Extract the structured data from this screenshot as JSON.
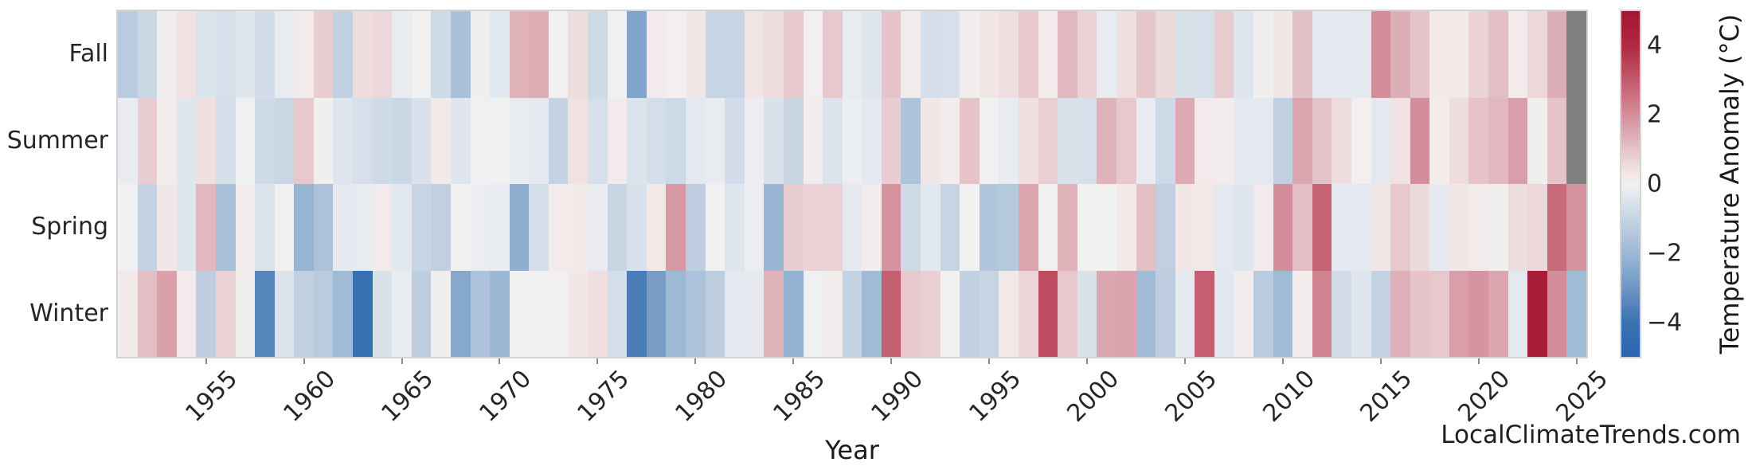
{
  "page": {
    "background": "#ffffff"
  },
  "footer": {
    "watermark": "LocalClimateTrends.com"
  },
  "chart_data": {
    "type": "heatmap",
    "title": "",
    "xlabel": "Year",
    "ylabel": "",
    "legend_position": "right-colorbar",
    "grid": false,
    "colorbar_label": "Temperature Anomaly (°C)",
    "colorbar_ticks": [
      {
        "value": 4,
        "label": "4"
      },
      {
        "value": 2,
        "label": "2"
      },
      {
        "value": 0,
        "label": "0"
      },
      {
        "value": -2,
        "label": "−2"
      },
      {
        "value": -4,
        "label": "−4"
      }
    ],
    "vmin": -5,
    "vmax": 5,
    "nan_color": "#808080",
    "colormap_name": "diverging-blue-white-red",
    "colormap_stops": [
      [
        -5,
        "#2a65ad"
      ],
      [
        -4,
        "#3a72b2"
      ],
      [
        -3,
        "#6f97c4"
      ],
      [
        -2,
        "#9cb8d5"
      ],
      [
        -1,
        "#c6d4e3"
      ],
      [
        -0.3,
        "#e4e9f0"
      ],
      [
        0,
        "#f1f1f2"
      ],
      [
        0.3,
        "#f2e7e7"
      ],
      [
        1,
        "#e5c3c9"
      ],
      [
        2,
        "#d48e9b"
      ],
      [
        3,
        "#c25a6d"
      ],
      [
        4,
        "#b02a40"
      ],
      [
        5,
        "#a31530"
      ]
    ],
    "categories_y": [
      "Fall",
      "Summer",
      "Spring",
      "Winter"
    ],
    "x_start_year": 1951,
    "x_end_year": 2025,
    "x_tick_labels": [
      "1955",
      "1960",
      "1965",
      "1970",
      "1975",
      "1980",
      "1985",
      "1990",
      "1995",
      "2000",
      "2005",
      "2010",
      "2015",
      "2020",
      "2025"
    ],
    "series": [
      {
        "name": "Fall",
        "values": [
          -1.3,
          -0.9,
          0.1,
          0.4,
          -0.5,
          -0.6,
          -0.4,
          -0.7,
          -0.2,
          0.2,
          0.8,
          -1.1,
          0.5,
          0.6,
          -0.2,
          0,
          -0.8,
          -1.7,
          0.1,
          -0.35,
          1.3,
          1.4,
          0,
          0.5,
          -0.8,
          0,
          -2.6,
          0.2,
          0.05,
          0.3,
          -1,
          -1,
          0.35,
          0.5,
          0.9,
          0.05,
          0.9,
          -0.2,
          -0.4,
          1,
          0.15,
          -0.65,
          -0.6,
          0.15,
          0.3,
          0.45,
          0.9,
          0.2,
          1.2,
          0.7,
          -0.2,
          0.45,
          0.95,
          0.55,
          -0.55,
          -0.6,
          0.85,
          -0.45,
          0.1,
          0.3,
          1.05,
          -0.25,
          -0.25,
          -0.3,
          2,
          1.4,
          1,
          0.25,
          0.25,
          0.7,
          1.1,
          0.2,
          0.6,
          1.4,
          null
        ]
      },
      {
        "name": "Summer",
        "values": [
          -0.2,
          0.8,
          0.15,
          -0.4,
          0.45,
          -0.65,
          -0.05,
          -0.8,
          -0.9,
          0.9,
          0.1,
          -0.45,
          -0.6,
          -0.8,
          -0.9,
          -0.55,
          0.25,
          -0.4,
          -0.05,
          0,
          -0.2,
          -0.25,
          -1.05,
          0.4,
          -0.6,
          0.2,
          -0.5,
          -0.65,
          -0.85,
          -0.3,
          -0.2,
          -0.7,
          -0.1,
          -0.55,
          -0.95,
          0.15,
          -0.5,
          -0.1,
          -0.25,
          0.8,
          -1.6,
          0.3,
          0.15,
          1,
          0,
          -0.2,
          0.45,
          0.75,
          -0.55,
          -0.6,
          1.3,
          0.9,
          -0.2,
          -0.85,
          1.5,
          0.2,
          0.15,
          -0.25,
          -0.3,
          -1.15,
          1.55,
          1,
          0.5,
          0.05,
          -0.3,
          0.4,
          2,
          0.15,
          0.5,
          1,
          1.2,
          1.7,
          0.1,
          1,
          null
        ]
      },
      {
        "name": "Spring",
        "values": [
          0,
          -1.05,
          0.3,
          -0.4,
          1.2,
          -1.7,
          0.15,
          -0.5,
          0,
          -2.1,
          -1.65,
          -0.25,
          -0.2,
          0.2,
          -0.35,
          -1,
          -1.15,
          0,
          -0.15,
          -0.2,
          -2.3,
          -0.65,
          0.2,
          0.25,
          -0.2,
          -0.95,
          -0.55,
          0.25,
          1.8,
          -1.2,
          0,
          -0.45,
          -0.15,
          -2.1,
          0.8,
          0.7,
          0.7,
          -0.3,
          0.15,
          1.9,
          -0.8,
          -0.35,
          -1,
          0,
          -1.5,
          -1.4,
          1.55,
          0,
          1.3,
          0,
          0,
          0.25,
          1.1,
          -1.15,
          0.3,
          0.28,
          -0.3,
          -0.4,
          0.2,
          2,
          1.1,
          2.8,
          -0.25,
          -0.3,
          0.3,
          0.9,
          0.55,
          -0.25,
          0.3,
          0.2,
          0.1,
          0.5,
          0.6,
          2.7,
          1.9
        ]
      },
      {
        "name": "Winter",
        "values": [
          0.25,
          1.1,
          1.65,
          0.2,
          -1.2,
          0.7,
          0.1,
          -3.5,
          -0.5,
          -1.1,
          -1.3,
          -1.9,
          -4.1,
          -0.55,
          -0.2,
          -1.2,
          0.1,
          -2.5,
          -1.6,
          -2,
          0,
          0,
          0.05,
          0.3,
          0.45,
          -0.65,
          -3.7,
          -2.8,
          -1.95,
          -1.6,
          -1.25,
          -0.3,
          -0.25,
          1.3,
          -2.2,
          -0.05,
          0.15,
          -1.05,
          -1.9,
          2.9,
          0.9,
          0.75,
          0,
          -1.1,
          -1,
          0.25,
          0.65,
          3.3,
          0.9,
          -0.55,
          1.55,
          1.6,
          -1.85,
          -1.2,
          -0.3,
          2.9,
          -0.35,
          0.15,
          -1.3,
          -1.9,
          0.15,
          2.2,
          -0.75,
          -0.45,
          -1.05,
          1.35,
          1,
          0.9,
          1.7,
          1.9,
          1.55,
          -0.3,
          4.6,
          2,
          -1.9
        ]
      }
    ]
  }
}
